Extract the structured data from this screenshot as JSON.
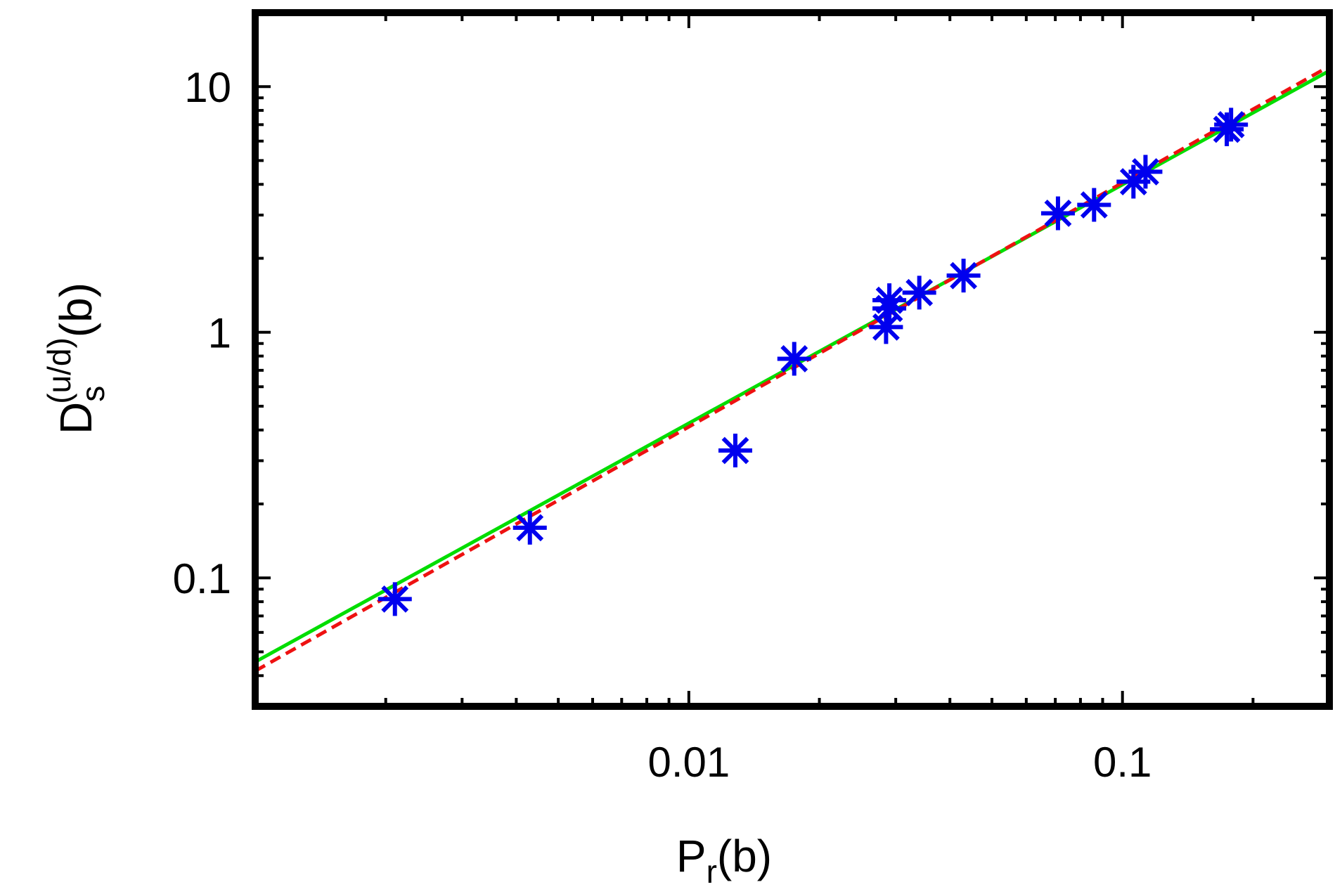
{
  "chart_data": {
    "type": "scatter",
    "xscale": "log",
    "yscale": "log",
    "xlim": [
      0.001,
      0.3
    ],
    "ylim": [
      0.03,
      20
    ],
    "grid": false,
    "x_ticks": [
      {
        "value": 0.01,
        "label": "0.01"
      },
      {
        "value": 0.1,
        "label": "0.1"
      }
    ],
    "y_ticks": [
      {
        "value": 0.1,
        "label": "0.1"
      },
      {
        "value": 1,
        "label": "1"
      },
      {
        "value": 10,
        "label": "10"
      }
    ],
    "xlabel": {
      "main": "P",
      "sub": "r",
      "rest": "(b)"
    },
    "ylabel": {
      "main": "D",
      "sub": "s",
      "sup": "(u/d)",
      "rest": "(b)"
    },
    "points": [
      {
        "x": 0.0021,
        "y": 0.082
      },
      {
        "x": 0.0043,
        "y": 0.16
      },
      {
        "x": 0.0128,
        "y": 0.33
      },
      {
        "x": 0.0175,
        "y": 0.78
      },
      {
        "x": 0.0285,
        "y": 1.05
      },
      {
        "x": 0.029,
        "y": 1.25
      },
      {
        "x": 0.029,
        "y": 1.35
      },
      {
        "x": 0.034,
        "y": 1.45
      },
      {
        "x": 0.043,
        "y": 1.7
      },
      {
        "x": 0.071,
        "y": 3.05
      },
      {
        "x": 0.086,
        "y": 3.3
      },
      {
        "x": 0.106,
        "y": 4.1
      },
      {
        "x": 0.113,
        "y": 4.5
      },
      {
        "x": 0.174,
        "y": 6.7
      },
      {
        "x": 0.178,
        "y": 7.0
      }
    ],
    "fits": [
      {
        "style": "solid",
        "color": "#00dd00",
        "x": [
          0.001,
          0.3
        ],
        "y": [
          0.0455,
          11.6
        ]
      },
      {
        "style": "dashed",
        "color": "#ee1111",
        "x": [
          0.001,
          0.3
        ],
        "y": [
          0.0418,
          12.1
        ]
      }
    ],
    "marker_color": "#0000ee",
    "frame_color": "#000000"
  }
}
